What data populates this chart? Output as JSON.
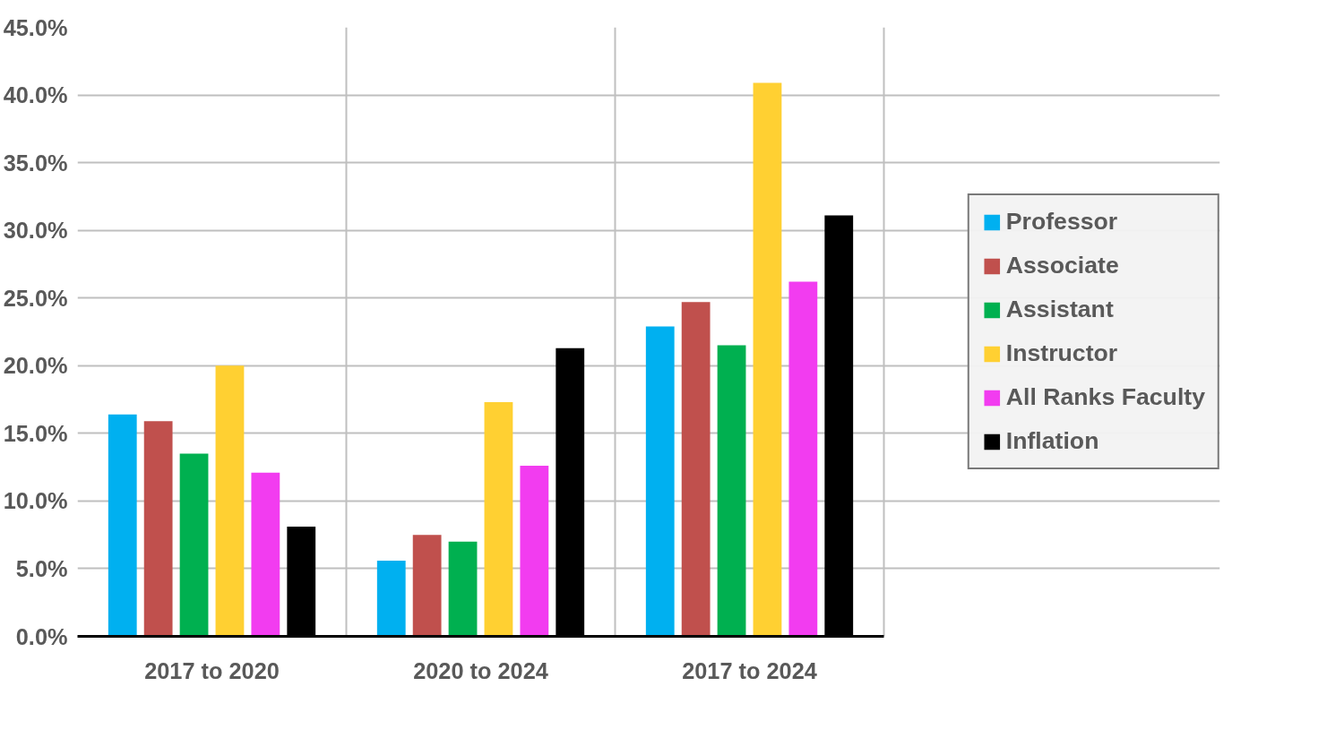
{
  "chart_data": {
    "type": "bar",
    "categories": [
      "2017 to 2020",
      "2020 to 2024",
      "2017 to 2024"
    ],
    "series": [
      {
        "name": "Professor",
        "color": "#00b0f0",
        "values": [
          16.4,
          5.6,
          22.9
        ]
      },
      {
        "name": "Associate",
        "color": "#c0504d",
        "values": [
          15.9,
          7.5,
          24.7
        ]
      },
      {
        "name": "Assistant",
        "color": "#00b050",
        "values": [
          13.5,
          7.0,
          21.5
        ]
      },
      {
        "name": "Instructor",
        "color": "#ffd032",
        "values": [
          20.0,
          17.3,
          40.9
        ]
      },
      {
        "name": "All Ranks Faculty",
        "color": "#f23cf0",
        "values": [
          12.1,
          12.6,
          26.2
        ]
      },
      {
        "name": "Inflation",
        "color": "#000000",
        "values": [
          8.1,
          21.3,
          31.1
        ]
      }
    ],
    "ylim": [
      0,
      45
    ],
    "yticks": [
      {
        "value": 0,
        "label": "0.0%"
      },
      {
        "value": 5,
        "label": "5.0%"
      },
      {
        "value": 10,
        "label": "10.0%"
      },
      {
        "value": 15,
        "label": "15.0%"
      },
      {
        "value": 20,
        "label": "20.0%"
      },
      {
        "value": 25,
        "label": "25.0%"
      },
      {
        "value": 30,
        "label": "30.0%"
      },
      {
        "value": 35,
        "label": "35.0%"
      },
      {
        "value": 40,
        "label": "40.0%"
      },
      {
        "value": 45,
        "label": "45.0%"
      }
    ],
    "grid": true,
    "legend": "right"
  }
}
